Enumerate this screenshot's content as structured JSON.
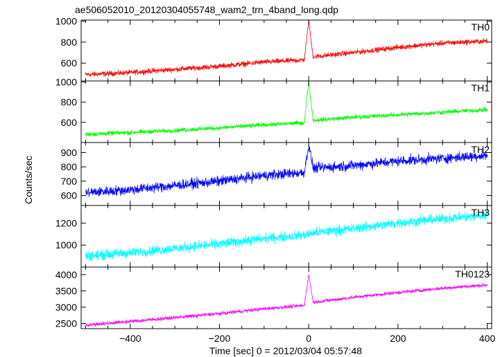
{
  "figure": {
    "title": "ae506052010_20120304055748_wam2_trn_4band_long.qdp",
    "xlabel": "Time [sec] 0 = 2012/03/04 05:57:48",
    "ylabel": "Counts/sec",
    "x_ticks": [
      "−400",
      "−200",
      "0",
      "200",
      "400"
    ]
  },
  "chart_data": [
    {
      "type": "line",
      "name": "TH0",
      "color": "#ff0000",
      "xlim": [
        -510,
        410
      ],
      "ylim": [
        430,
        1010
      ],
      "yticks": [
        600,
        800,
        1000
      ],
      "ytick_labels": [
        "600",
        "800",
        "1000"
      ],
      "x": [
        -500,
        -400,
        -300,
        -200,
        -100,
        -10,
        0,
        10,
        100,
        200,
        300,
        400
      ],
      "y": [
        490,
        510,
        540,
        570,
        610,
        630,
        1000,
        660,
        700,
        750,
        790,
        810
      ],
      "noise": 25
    },
    {
      "type": "line",
      "name": "TH1",
      "color": "#00ff00",
      "xlim": [
        -510,
        410
      ],
      "ylim": [
        400,
        1010
      ],
      "yticks": [
        600,
        800,
        1000
      ],
      "ytick_labels": [
        "600",
        "800",
        "1000"
      ],
      "x": [
        -500,
        -400,
        -300,
        -200,
        -100,
        -10,
        0,
        10,
        100,
        200,
        300,
        400
      ],
      "y": [
        480,
        500,
        520,
        545,
        575,
        595,
        1010,
        620,
        650,
        675,
        700,
        725
      ],
      "noise": 22
    },
    {
      "type": "line",
      "name": "TH2",
      "color": "#0000ff",
      "xlim": [
        -510,
        410
      ],
      "ylim": [
        530,
        970
      ],
      "yticks": [
        600,
        700,
        800,
        900
      ],
      "ytick_labels": [
        "600",
        "700",
        "800",
        "900"
      ],
      "x": [
        -500,
        -400,
        -300,
        -200,
        -100,
        -10,
        0,
        10,
        100,
        200,
        300,
        400
      ],
      "y": [
        620,
        640,
        670,
        700,
        740,
        760,
        950,
        790,
        810,
        840,
        860,
        880
      ],
      "noise": 35
    },
    {
      "type": "line",
      "name": "TH3",
      "color": "#00ffff",
      "xlim": [
        -510,
        410
      ],
      "ylim": [
        800,
        1360
      ],
      "yticks": [
        1000,
        1200
      ],
      "ytick_labels": [
        "1000",
        "1200"
      ],
      "x": [
        -500,
        -400,
        -300,
        -200,
        -100,
        -10,
        0,
        10,
        100,
        200,
        300,
        400
      ],
      "y": [
        900,
        930,
        970,
        1010,
        1060,
        1090,
        1100,
        1110,
        1150,
        1200,
        1240,
        1270
      ],
      "noise": 45
    },
    {
      "type": "line",
      "name": "TH0123",
      "color": "#ff00ff",
      "xlim": [
        -510,
        410
      ],
      "ylim": [
        2340,
        4230
      ],
      "yticks": [
        2500,
        3000,
        3500,
        4000
      ],
      "ytick_labels": [
        "2500",
        "3000",
        "3500",
        "4000"
      ],
      "x": [
        -500,
        -400,
        -300,
        -200,
        -100,
        -10,
        0,
        10,
        100,
        200,
        300,
        400
      ],
      "y": [
        2450,
        2560,
        2680,
        2800,
        2950,
        3050,
        4000,
        3150,
        3300,
        3450,
        3580,
        3680
      ],
      "noise": 55
    }
  ]
}
